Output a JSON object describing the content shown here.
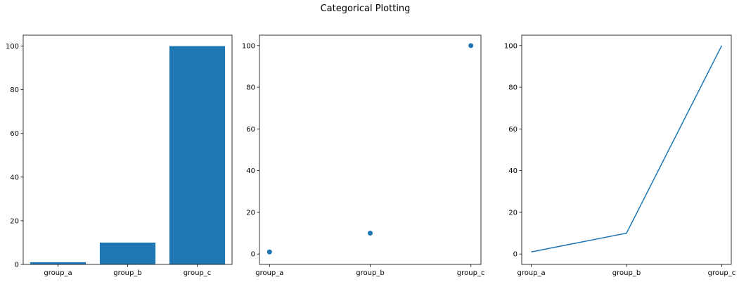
{
  "figure": {
    "title": "Categorical Plotting"
  },
  "colors": {
    "series": "#1f77b4",
    "axes": "#000000",
    "background": "#ffffff"
  },
  "chart_data": [
    {
      "type": "bar",
      "categories": [
        "group_a",
        "group_b",
        "group_c"
      ],
      "values": [
        1,
        10,
        100
      ],
      "ylim": [
        0,
        105
      ],
      "yticks": [
        0,
        20,
        40,
        60,
        80,
        100
      ],
      "grid": false
    },
    {
      "type": "scatter",
      "categories": [
        "group_a",
        "group_b",
        "group_c"
      ],
      "values": [
        1,
        10,
        100
      ],
      "ylim": [
        -5,
        105
      ],
      "yticks": [
        0,
        20,
        40,
        60,
        80,
        100
      ],
      "grid": false
    },
    {
      "type": "line",
      "categories": [
        "group_a",
        "group_b",
        "group_c"
      ],
      "values": [
        1,
        10,
        100
      ],
      "ylim": [
        -5,
        105
      ],
      "yticks": [
        0,
        20,
        40,
        60,
        80,
        100
      ],
      "grid": false
    }
  ]
}
